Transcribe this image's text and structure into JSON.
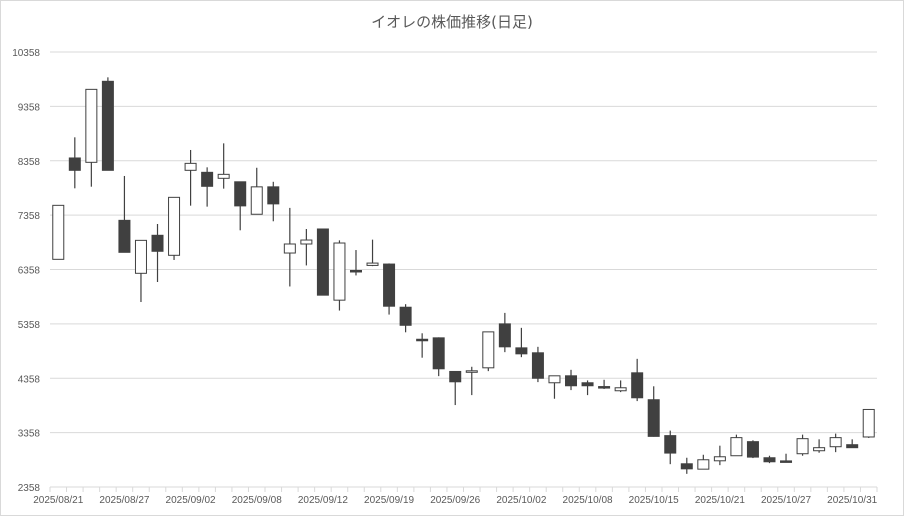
{
  "chart_data": {
    "type": "candlestick",
    "title": "イオレの株価推移(日足)",
    "xlabel": "",
    "ylabel": "",
    "ylim": [
      2358,
      10358
    ],
    "yticks": [
      "2358",
      "3358",
      "4358",
      "5358",
      "6358",
      "7358",
      "8358",
      "9358",
      "10358"
    ],
    "grid": true,
    "legend": "none",
    "x_labels": [
      {
        "index": 0,
        "label": "2025/08/21"
      },
      {
        "index": 4,
        "label": "2025/08/27"
      },
      {
        "index": 8,
        "label": "2025/09/02"
      },
      {
        "index": 12,
        "label": "2025/09/08"
      },
      {
        "index": 16,
        "label": "2025/09/12"
      },
      {
        "index": 20,
        "label": "2025/09/19"
      },
      {
        "index": 24,
        "label": "2025/09/26"
      },
      {
        "index": 28,
        "label": "2025/10/02"
      },
      {
        "index": 32,
        "label": "2025/10/08"
      },
      {
        "index": 36,
        "label": "2025/10/15"
      },
      {
        "index": 40,
        "label": "2025/10/21"
      },
      {
        "index": 44,
        "label": "2025/10/27"
      },
      {
        "index": 48,
        "label": "2025/10/31"
      }
    ],
    "colors": {
      "up_fill": "#ffffff",
      "down_fill": "#404040",
      "stroke": "#404040",
      "grid": "#d9d9d9"
    },
    "ohlc": [
      [
        6545,
        7540,
        6545,
        7538
      ],
      [
        8409,
        8789,
        7851,
        8182
      ],
      [
        8329,
        9671,
        7881,
        9671
      ],
      [
        9819,
        9892,
        8182,
        8182
      ],
      [
        7262,
        8078,
        6674,
        6674
      ],
      [
        6288,
        6894,
        5760,
        6894
      ],
      [
        6987,
        7195,
        6128,
        6693
      ],
      [
        6619,
        7685,
        6533,
        7685
      ],
      [
        8182,
        8556,
        7532,
        8310
      ],
      [
        8145,
        8237,
        7514,
        7888
      ],
      [
        8035,
        8678,
        7845,
        8108
      ],
      [
        7971,
        7975,
        7079,
        7528
      ],
      [
        7374,
        8229,
        7370,
        7878
      ],
      [
        7878,
        7971,
        7245,
        7565
      ],
      [
        6661,
        7491,
        6046,
        6827
      ],
      [
        6827,
        7103,
        6433,
        6900
      ],
      [
        7103,
        7103,
        5886,
        5886
      ],
      [
        5794,
        6894,
        5603,
        6845
      ],
      [
        6340,
        6716,
        6249,
        6330
      ],
      [
        6433,
        6907,
        6420,
        6476
      ],
      [
        6458,
        6470,
        5529,
        5683
      ],
      [
        5664,
        5720,
        5203,
        5332
      ],
      [
        5075,
        5185,
        4736,
        5065
      ],
      [
        5101,
        5110,
        4397,
        4532
      ],
      [
        4483,
        4483,
        3865,
        4293
      ],
      [
        4480,
        4569,
        4048,
        4495
      ],
      [
        4550,
        5211,
        4489,
        5211
      ],
      [
        5358,
        5560,
        4838,
        4936
      ],
      [
        4917,
        5285,
        4746,
        4807
      ],
      [
        4826,
        4936,
        4287,
        4358
      ],
      [
        4275,
        4403,
        3981,
        4403
      ],
      [
        4403,
        4513,
        4140,
        4220
      ],
      [
        4275,
        4318,
        4048,
        4220
      ],
      [
        4205,
        4330,
        4160,
        4180
      ],
      [
        4128,
        4318,
        4103,
        4183
      ],
      [
        4458,
        4715,
        3938,
        3999
      ],
      [
        3963,
        4210,
        3284,
        3289
      ],
      [
        3303,
        3395,
        2778,
        2982
      ],
      [
        2785,
        2896,
        2600,
        2692
      ],
      [
        2686,
        2951,
        2680,
        2859
      ],
      [
        2840,
        3118,
        2760,
        2914
      ],
      [
        2933,
        3321,
        2930,
        3266
      ],
      [
        3192,
        3217,
        2890,
        2908
      ],
      [
        2896,
        2933,
        2797,
        2822
      ],
      [
        2838,
        2970,
        2820,
        2830
      ],
      [
        2970,
        3321,
        2933,
        3247
      ],
      [
        3025,
        3235,
        2988,
        3081
      ],
      [
        3099,
        3340,
        2999,
        3266
      ],
      [
        3136,
        3235,
        3075,
        3081
      ],
      [
        3278,
        3784,
        3260,
        3784
      ]
    ]
  }
}
